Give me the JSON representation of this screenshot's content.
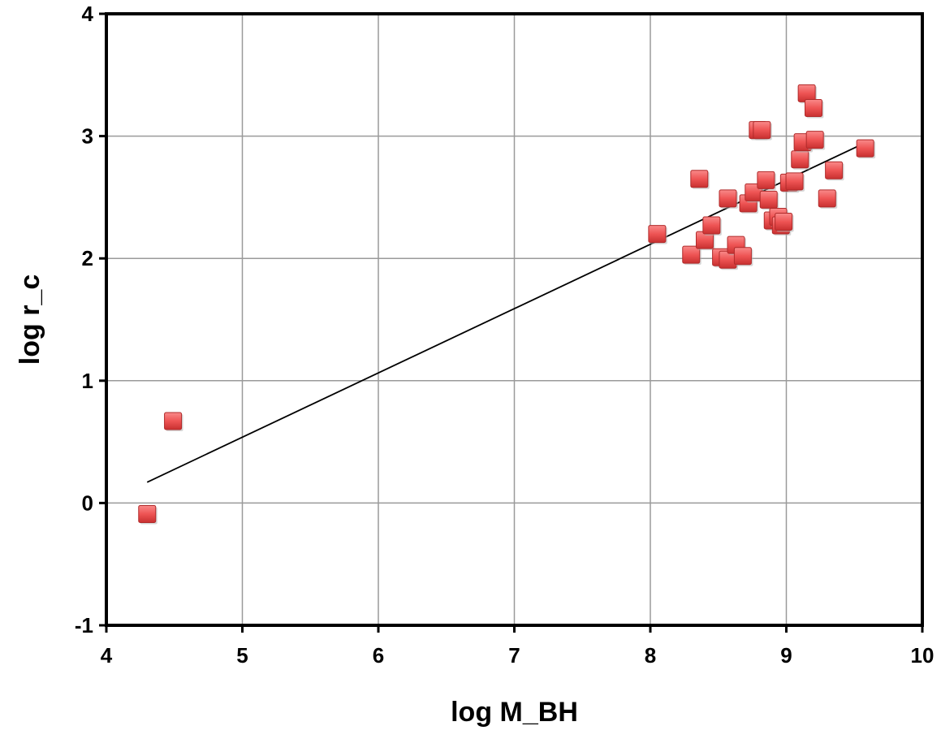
{
  "chart_data": {
    "type": "scatter",
    "title": "",
    "xlabel": "log M_BH",
    "ylabel": "log r_c",
    "xlim": [
      4,
      10
    ],
    "ylim": [
      -1,
      4
    ],
    "xticks": [
      "4",
      "5",
      "6",
      "7",
      "8",
      "9",
      "10"
    ],
    "yticks": [
      "-1",
      "0",
      "1",
      "2",
      "3",
      "4"
    ],
    "grid": true,
    "legend": "none",
    "marker": "square",
    "marker_color": "#f05a5a",
    "points": [
      {
        "x": 4.3,
        "y": -0.09
      },
      {
        "x": 4.49,
        "y": 0.67
      },
      {
        "x": 8.05,
        "y": 2.2
      },
      {
        "x": 8.3,
        "y": 2.03
      },
      {
        "x": 8.36,
        "y": 2.65
      },
      {
        "x": 8.4,
        "y": 2.15
      },
      {
        "x": 8.45,
        "y": 2.27
      },
      {
        "x": 8.52,
        "y": 2.01
      },
      {
        "x": 8.57,
        "y": 1.99
      },
      {
        "x": 8.57,
        "y": 2.49
      },
      {
        "x": 8.63,
        "y": 2.11
      },
      {
        "x": 8.68,
        "y": 2.02
      },
      {
        "x": 8.72,
        "y": 2.45
      },
      {
        "x": 8.76,
        "y": 2.54
      },
      {
        "x": 8.79,
        "y": 3.05
      },
      {
        "x": 8.82,
        "y": 3.05
      },
      {
        "x": 8.85,
        "y": 2.64
      },
      {
        "x": 8.87,
        "y": 2.48
      },
      {
        "x": 8.9,
        "y": 2.31
      },
      {
        "x": 8.94,
        "y": 2.34
      },
      {
        "x": 8.96,
        "y": 2.27
      },
      {
        "x": 8.98,
        "y": 2.3
      },
      {
        "x": 9.02,
        "y": 2.62
      },
      {
        "x": 9.06,
        "y": 2.63
      },
      {
        "x": 9.1,
        "y": 2.81
      },
      {
        "x": 9.12,
        "y": 2.95
      },
      {
        "x": 9.15,
        "y": 3.35
      },
      {
        "x": 9.2,
        "y": 3.23
      },
      {
        "x": 9.21,
        "y": 2.97
      },
      {
        "x": 9.3,
        "y": 2.49
      },
      {
        "x": 9.35,
        "y": 2.72
      },
      {
        "x": 9.58,
        "y": 2.9
      }
    ],
    "fit_line": {
      "x": [
        4.3,
        9.55
      ],
      "y": [
        0.17,
        2.93
      ],
      "color": "#000000"
    }
  }
}
